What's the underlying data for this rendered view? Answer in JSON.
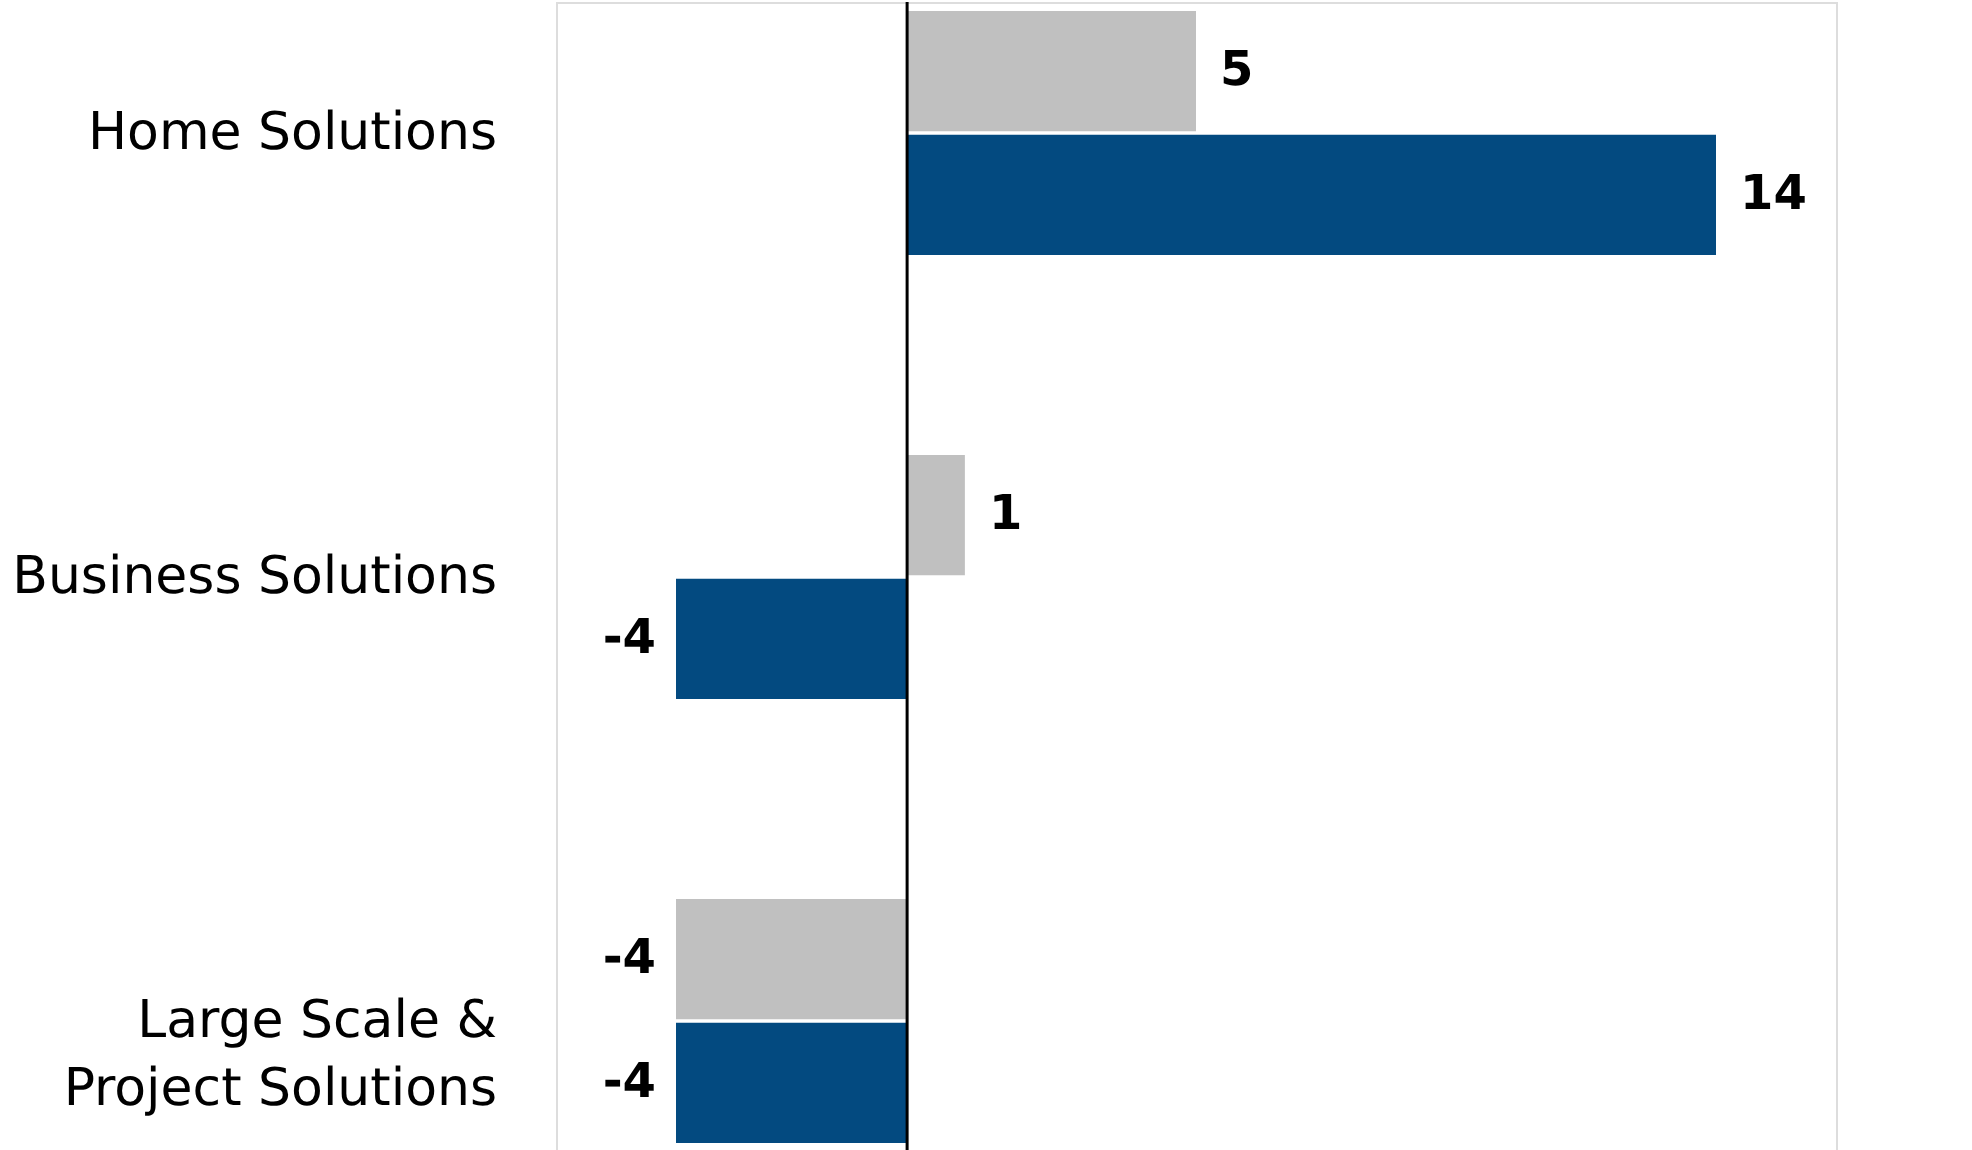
{
  "chart_data": {
    "type": "bar",
    "orientation": "horizontal",
    "categories": [
      "Home Solutions",
      "Business Solutions",
      "Large Scale &\nProject Solutions"
    ],
    "series": [
      {
        "color": "#c0c0c0",
        "values": [
          5,
          1,
          -4
        ]
      },
      {
        "color": "#034a80",
        "values": [
          14,
          -4,
          -4
        ]
      }
    ],
    "data_labels": true,
    "grid": false,
    "legend": false
  }
}
